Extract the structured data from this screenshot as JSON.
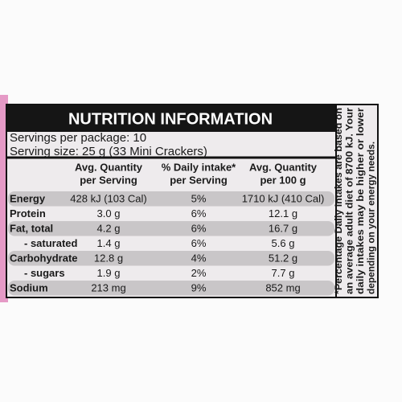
{
  "title": "NUTRITION INFORMATION",
  "servings": [
    "Servings per package: 10",
    "Serving size: 25 g (33 Mini Crackers)"
  ],
  "table": {
    "headers": [
      [
        "Avg. Quantity",
        "per Serving"
      ],
      [
        "% Daily intake*",
        "per Serving"
      ],
      [
        "Avg. Quantity",
        "per 100 g"
      ]
    ],
    "rows": [
      [
        "Energy",
        "428 kJ (103 Cal)",
        "5%",
        "1710 kJ (410 Cal)"
      ],
      [
        "Protein",
        "3.0 g",
        "6%",
        "12.1 g"
      ],
      [
        "Fat, total",
        "4.2 g",
        "6%",
        "16.7 g"
      ],
      [
        "- saturated",
        "1.4 g",
        "6%",
        "5.6 g"
      ],
      [
        "Carbohydrate",
        "12.8 g",
        "4%",
        "51.2 g"
      ],
      [
        "- sugars",
        "1.9 g",
        "2%",
        "7.7 g"
      ],
      [
        "Sodium",
        "213 mg",
        "9%",
        "852 mg"
      ]
    ]
  },
  "footnote": [
    "*Percentage Daily Intakes are based on",
    "an average adult diet of 8700 kJ. Your",
    "daily intakes may be higher or lower",
    "depending on your energy needs."
  ]
}
